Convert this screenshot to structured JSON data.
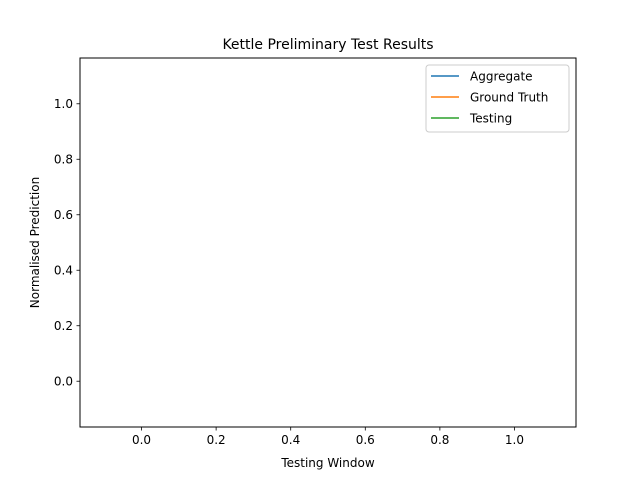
{
  "chart_data": {
    "type": "line",
    "title": "Kettle Preliminary Test Results",
    "xlabel": "Testing Window",
    "ylabel": "Normalised Prediction",
    "xlim": [
      -0.165,
      1.165
    ],
    "ylim": [
      -0.165,
      1.165
    ],
    "xticks": [
      0.0,
      0.2,
      0.4,
      0.6,
      0.8,
      1.0
    ],
    "xtick_labels": [
      "0.0",
      "0.2",
      "0.4",
      "0.6",
      "0.8",
      "1.0"
    ],
    "yticks": [
      0.0,
      0.2,
      0.4,
      0.6,
      0.8,
      1.0
    ],
    "ytick_labels": [
      "0.0",
      "0.2",
      "0.4",
      "0.6",
      "0.8",
      "1.0"
    ],
    "grid": false,
    "legend_position": "top-right",
    "series": [
      {
        "name": "Aggregate",
        "color": "#1f77b4",
        "x": [],
        "y": []
      },
      {
        "name": "Ground Truth",
        "color": "#ff7f0e",
        "x": [],
        "y": []
      },
      {
        "name": "Testing",
        "color": "#2ca02c",
        "x": [],
        "y": []
      }
    ]
  }
}
